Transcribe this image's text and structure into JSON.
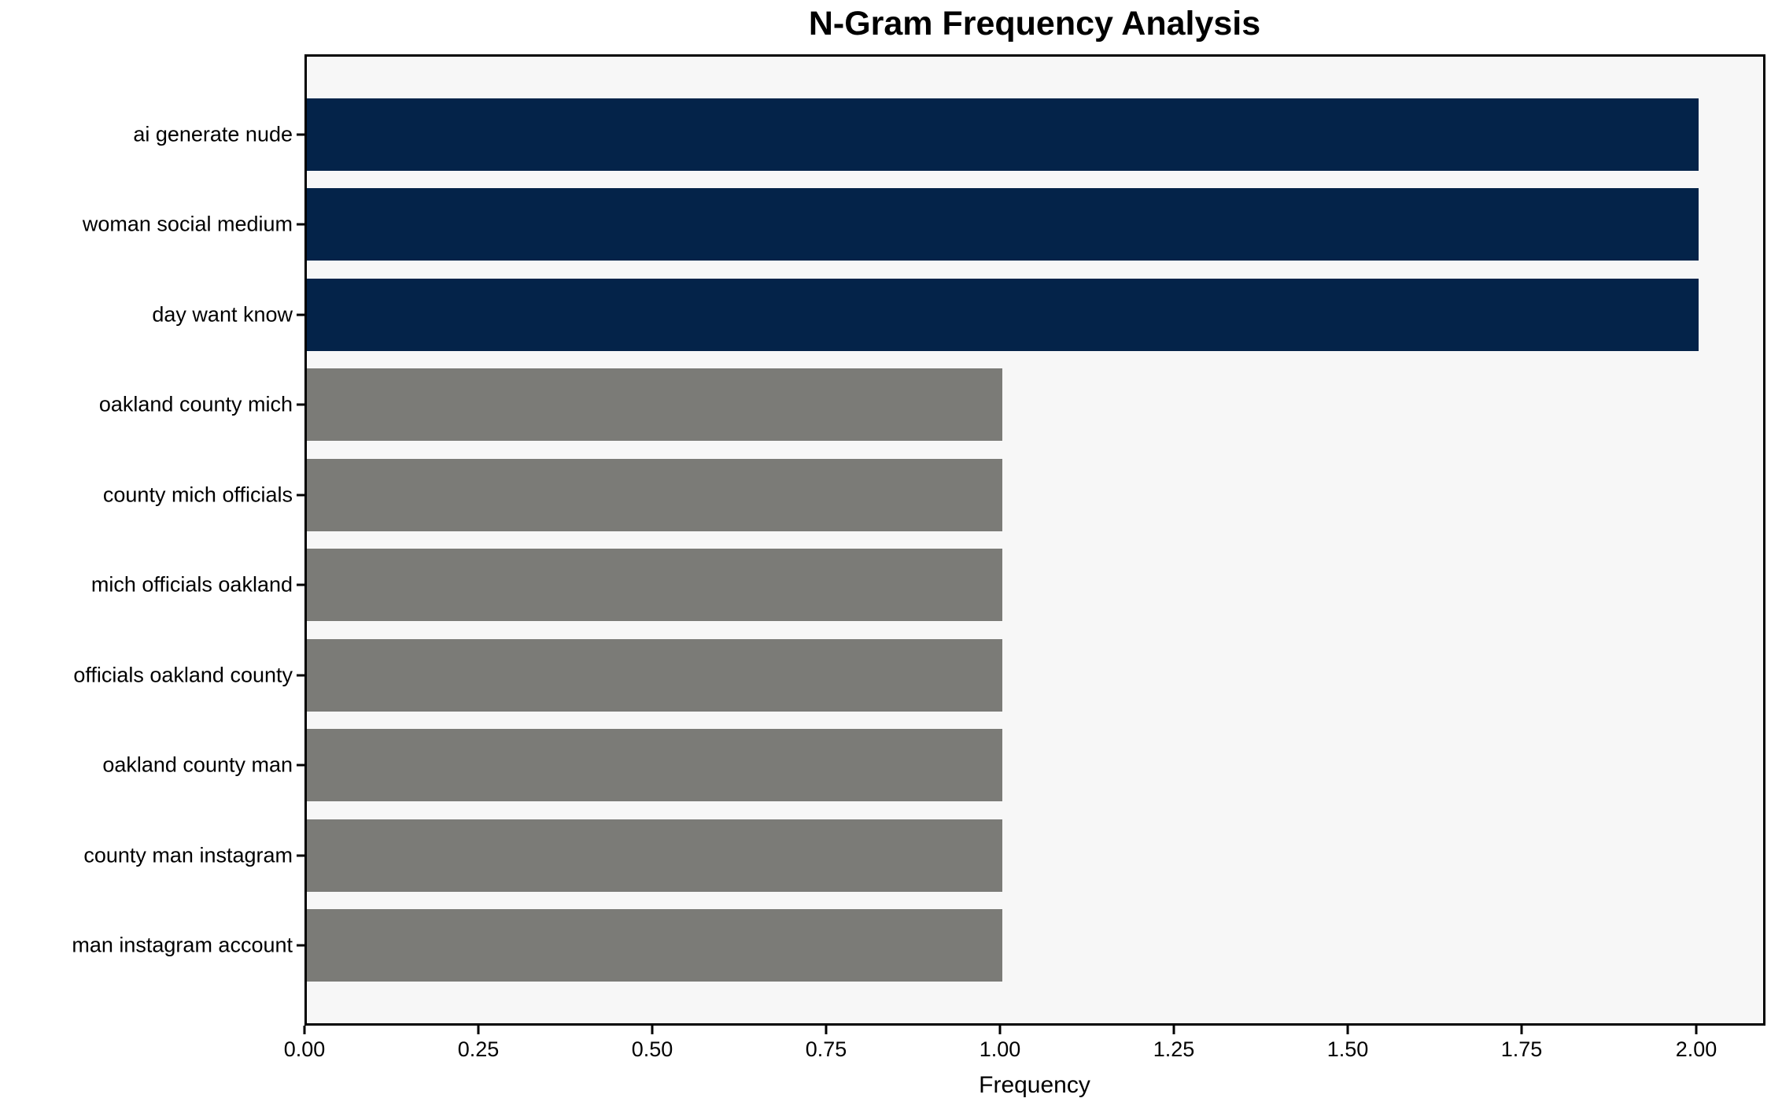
{
  "chart_data": {
    "type": "bar",
    "orientation": "horizontal",
    "title": "N-Gram Frequency Analysis",
    "xlabel": "Frequency",
    "ylabel": "",
    "categories": [
      "ai generate nude",
      "woman social medium",
      "day want know",
      "oakland county mich",
      "county mich officials",
      "mich officials oakland",
      "officials oakland county",
      "oakland county man",
      "county man instagram",
      "man instagram account"
    ],
    "values": [
      2,
      2,
      2,
      1,
      1,
      1,
      1,
      1,
      1,
      1
    ],
    "bar_colors": [
      "#042349",
      "#042349",
      "#042349",
      "#7b7b77",
      "#7b7b77",
      "#7b7b77",
      "#7b7b77",
      "#7b7b77",
      "#7b7b77",
      "#7b7b77"
    ],
    "xlim": [
      0.0,
      2.1
    ],
    "xticks": [
      {
        "value": 0.0,
        "label": "0.00"
      },
      {
        "value": 0.25,
        "label": "0.25"
      },
      {
        "value": 0.5,
        "label": "0.50"
      },
      {
        "value": 0.75,
        "label": "0.75"
      },
      {
        "value": 1.0,
        "label": "1.00"
      },
      {
        "value": 1.25,
        "label": "1.25"
      },
      {
        "value": 1.5,
        "label": "1.50"
      },
      {
        "value": 1.75,
        "label": "1.75"
      },
      {
        "value": 2.0,
        "label": "2.00"
      }
    ],
    "grid": false,
    "legend": false,
    "colors": {
      "highlight_bar": "#042349",
      "default_bar": "#7b7b77",
      "plot_background": "#f7f7f7",
      "figure_background": "#ffffff",
      "text": "#000000"
    }
  }
}
